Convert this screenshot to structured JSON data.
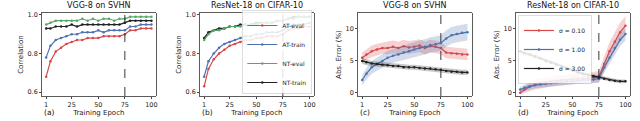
{
  "chart_data": [
    {
      "type": "line",
      "title": "VGG-8 on SVHN",
      "label": "(a)",
      "x_label": "Training Epoch",
      "y_label": "Correlation",
      "x": [
        1,
        5,
        10,
        15,
        20,
        25,
        30,
        35,
        40,
        45,
        50,
        55,
        60,
        65,
        70,
        75,
        80,
        85,
        90,
        95,
        100
      ],
      "xlim": [
        -3,
        104
      ],
      "xticks": [
        1,
        25,
        50,
        75,
        100
      ],
      "ylim": [
        0.58,
        1.01
      ],
      "yticks": [
        0.6,
        0.8,
        {
          "value": 1,
          "label": "1.0"
        }
      ],
      "vline": 75,
      "marker": "circle",
      "line_style": "solid",
      "grid": false,
      "series": [
        {
          "name": "NT-train",
          "color": "#222222",
          "values": [
            0.93,
            0.93,
            0.94,
            0.94,
            0.94,
            0.95,
            0.94,
            0.95,
            0.95,
            0.95,
            0.95,
            0.95,
            0.95,
            0.95,
            0.95,
            0.96,
            0.97,
            0.97,
            0.97,
            0.97,
            0.97
          ]
        },
        {
          "name": "NT-eval",
          "color": "#55a868",
          "values": [
            0.95,
            0.96,
            0.97,
            0.97,
            0.97,
            0.97,
            0.97,
            0.98,
            0.97,
            0.98,
            0.97,
            0.98,
            0.98,
            0.97,
            0.98,
            0.98,
            0.99,
            0.99,
            0.99,
            0.99,
            0.99
          ]
        },
        {
          "name": "AT-train",
          "color": "#4c72b0",
          "values": [
            0.78,
            0.84,
            0.87,
            0.88,
            0.89,
            0.9,
            0.9,
            0.91,
            0.91,
            0.91,
            0.92,
            0.91,
            0.92,
            0.92,
            0.92,
            0.92,
            0.94,
            0.94,
            0.95,
            0.95,
            0.95
          ]
        },
        {
          "name": "AT-eval",
          "color": "#d9474a",
          "values": [
            0.68,
            0.76,
            0.81,
            0.83,
            0.85,
            0.86,
            0.87,
            0.87,
            0.88,
            0.88,
            0.88,
            0.89,
            0.89,
            0.89,
            0.89,
            0.9,
            0.92,
            0.92,
            0.93,
            0.93,
            0.93
          ]
        }
      ]
    },
    {
      "type": "line",
      "title": "ResNet-18 on CIFAR-10",
      "label": "(b)",
      "x_label": "Training Epoch",
      "y_label": "Correlation",
      "x": [
        1,
        5,
        10,
        15,
        20,
        25,
        30,
        35,
        40,
        45,
        50,
        55,
        60,
        65,
        70,
        75,
        80,
        85,
        90,
        95,
        100
      ],
      "xlim": [
        -3,
        104
      ],
      "xticks": [
        1,
        25,
        50,
        75,
        100
      ],
      "ylim": [
        0.58,
        1.01
      ],
      "yticks": [
        0.6,
        0.8,
        {
          "value": 1,
          "label": "1.0"
        }
      ],
      "vline": 75,
      "marker": "circle",
      "line_style": "solid",
      "grid": false,
      "legend": "lower right",
      "series": [
        {
          "name": "NT-train",
          "color": "#222222",
          "values": [
            0.88,
            0.91,
            0.92,
            0.93,
            0.93,
            0.94,
            0.94,
            0.95,
            0.95,
            0.95,
            0.96,
            0.96,
            0.96,
            0.96,
            0.97,
            0.97,
            0.98,
            0.99,
            0.99,
            0.99,
            0.99
          ]
        },
        {
          "name": "NT-eval",
          "color": "#55a868",
          "values": [
            0.87,
            0.9,
            0.92,
            0.92,
            0.93,
            0.94,
            0.94,
            0.94,
            0.95,
            0.95,
            0.95,
            0.96,
            0.96,
            0.96,
            0.97,
            0.97,
            0.98,
            0.98,
            0.99,
            0.99,
            0.99
          ]
        },
        {
          "name": "AT-train",
          "color": "#4c72b0",
          "values": [
            0.68,
            0.76,
            0.8,
            0.83,
            0.85,
            0.86,
            0.87,
            0.88,
            0.89,
            0.89,
            0.9,
            0.9,
            0.91,
            0.91,
            0.91,
            0.92,
            0.94,
            0.95,
            0.95,
            0.95,
            0.96
          ]
        },
        {
          "name": "AT-eval",
          "color": "#d9474a",
          "values": [
            0.63,
            0.72,
            0.77,
            0.8,
            0.82,
            0.84,
            0.85,
            0.86,
            0.87,
            0.87,
            0.88,
            0.88,
            0.89,
            0.89,
            0.89,
            0.9,
            0.92,
            0.93,
            0.93,
            0.94,
            0.94
          ]
        }
      ]
    },
    {
      "type": "line",
      "title": "VGG-8 on SVHN",
      "label": "(c)",
      "x_label": "Training Epoch",
      "y_label": "Abs. Error (%)",
      "x": [
        1,
        5,
        10,
        15,
        20,
        25,
        30,
        35,
        40,
        45,
        50,
        55,
        60,
        65,
        70,
        75,
        80,
        85,
        90,
        95,
        100
      ],
      "xlim": [
        -3,
        104
      ],
      "xticks": [
        1,
        25,
        50,
        75,
        100
      ],
      "ylim": [
        -0.5,
        12.5
      ],
      "yticks": [
        0,
        5,
        10
      ],
      "vline": 75,
      "marker": "circle",
      "line_style": "solid",
      "grid": false,
      "series": [
        {
          "name": "σ = 0.10",
          "color": "#d9474a",
          "values": [
            5.5,
            6,
            6.5,
            6.8,
            7,
            7,
            7.2,
            7,
            7.3,
            7.1,
            7.2,
            7.4,
            7,
            7.3,
            7.2,
            7,
            6.3,
            6.2,
            6.1,
            6,
            6
          ],
          "error": [
            0.8,
            0.8,
            0.9,
            0.9,
            0.9,
            1,
            1,
            1,
            1,
            1,
            1,
            1,
            1,
            1,
            1,
            1,
            0.9,
            0.9,
            0.9,
            0.9,
            0.9
          ]
        },
        {
          "name": "σ = 1.00",
          "color": "#4c72b0",
          "values": [
            2,
            3,
            4,
            4.5,
            5,
            5.5,
            5.8,
            6,
            6.3,
            6.5,
            6.8,
            7,
            7.2,
            7.5,
            7.6,
            7.8,
            8.5,
            9,
            9.2,
            9.4,
            9.5
          ],
          "error": [
            0.8,
            0.9,
            1,
            1,
            1,
            1.1,
            1.1,
            1.1,
            1.1,
            1.2,
            1.2,
            1.2,
            1.2,
            1.2,
            1.2,
            1.2,
            1.3,
            1.3,
            1.3,
            1.3,
            1.3
          ]
        },
        {
          "name": "σ = 3.00",
          "color": "#222222",
          "values": [
            5,
            4.8,
            4.6,
            4.5,
            4.4,
            4.3,
            4.2,
            4.2,
            4,
            4,
            4,
            3.9,
            3.8,
            3.8,
            3.7,
            3.6,
            3.4,
            3.3,
            3.3,
            3.2,
            3.2
          ],
          "error": [
            0.5,
            0.5,
            0.4,
            0.4,
            0.4,
            0.4,
            0.4,
            0.4,
            0.4,
            0.4,
            0.4,
            0.4,
            0.4,
            0.4,
            0.4,
            0.4,
            0.4,
            0.4,
            0.4,
            0.4,
            0.4
          ]
        }
      ]
    },
    {
      "type": "line",
      "title": "ResNet-18 on CIFAR-10",
      "label": "(d)",
      "x_label": "Training Epoch",
      "y_label": "Abs. Error (%)",
      "x": [
        1,
        5,
        10,
        15,
        20,
        25,
        30,
        35,
        40,
        45,
        50,
        55,
        60,
        65,
        70,
        75,
        80,
        85,
        90,
        95,
        100
      ],
      "xlim": [
        -3,
        104
      ],
      "xticks": [
        1,
        25,
        50,
        75,
        100
      ],
      "ylim": [
        -0.5,
        12.5
      ],
      "yticks": [
        0,
        5,
        10
      ],
      "vline": 75,
      "marker": "circle",
      "line_style": "solid",
      "grid": false,
      "legend": "upper left",
      "series": [
        {
          "name": "σ = 0.10",
          "color": "#d9474a",
          "values": [
            0,
            0.5,
            1,
            1.3,
            1.5,
            1.7,
            1.8,
            1.9,
            2,
            2,
            2.1,
            2.2,
            2.2,
            2.3,
            2.4,
            2.5,
            4.5,
            6.5,
            8,
            9.5,
            10.5
          ],
          "error": [
            0.3,
            0.5,
            0.7,
            0.8,
            0.8,
            0.8,
            0.8,
            0.8,
            0.8,
            0.8,
            0.8,
            0.8,
            0.8,
            0.8,
            0.8,
            0.9,
            1.2,
            1.4,
            1.5,
            1.5,
            1.5
          ]
        },
        {
          "name": "σ = 1.00",
          "color": "#4c72b0",
          "values": [
            0.5,
            0.8,
            1,
            1.2,
            1.3,
            1.4,
            1.5,
            1.6,
            1.7,
            1.8,
            1.8,
            1.9,
            2,
            2,
            2.1,
            2.2,
            4,
            5.5,
            7,
            8.3,
            9.2
          ],
          "error": [
            0.4,
            0.5,
            0.5,
            0.5,
            0.5,
            0.5,
            0.5,
            0.5,
            0.5,
            0.5,
            0.5,
            0.5,
            0.5,
            0.5,
            0.5,
            0.6,
            0.8,
            0.9,
            1,
            1,
            1
          ]
        },
        {
          "name": "σ = 3.00",
          "color": "#222222",
          "values": [
            6.5,
            6.2,
            6,
            5.7,
            5.4,
            5,
            4.7,
            4.4,
            4.1,
            3.8,
            3.5,
            3.2,
            3,
            2.8,
            2.6,
            2.4,
            2.2,
            2,
            1.9,
            1.8,
            1.8
          ],
          "error": [
            0.3,
            0.3,
            0.3,
            0.3,
            0.3,
            0.3,
            0.3,
            0.3,
            0.3,
            0.3,
            0.3,
            0.3,
            0.3,
            0.3,
            0.3,
            0.3,
            0.3,
            0.3,
            0.3,
            0.3,
            0.3
          ]
        }
      ]
    }
  ]
}
